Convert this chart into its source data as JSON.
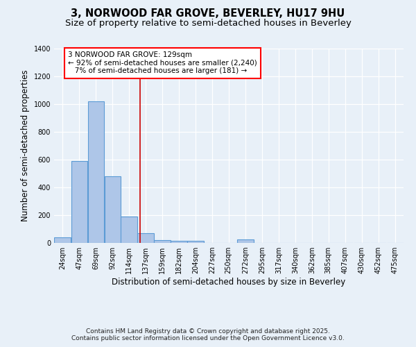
{
  "title": "3, NORWOOD FAR GROVE, BEVERLEY, HU17 9HU",
  "subtitle": "Size of property relative to semi-detached houses in Beverley",
  "xlabel": "Distribution of semi-detached houses by size in Beverley",
  "ylabel": "Number of semi-detached properties",
  "categories": [
    "24sqm",
    "47sqm",
    "69sqm",
    "92sqm",
    "114sqm",
    "137sqm",
    "159sqm",
    "182sqm",
    "204sqm",
    "227sqm",
    "250sqm",
    "272sqm",
    "295sqm",
    "317sqm",
    "340sqm",
    "362sqm",
    "385sqm",
    "407sqm",
    "430sqm",
    "452sqm",
    "475sqm"
  ],
  "bin_edges": [
    12.5,
    35.5,
    58,
    80.5,
    103,
    125.5,
    148,
    170.5,
    193,
    215.5,
    238,
    260.5,
    283.5,
    306,
    328.5,
    351,
    373.5,
    396,
    418.5,
    441,
    463.5,
    486.5
  ],
  "values": [
    40,
    590,
    1020,
    480,
    190,
    70,
    20,
    15,
    15,
    0,
    0,
    25,
    0,
    0,
    0,
    0,
    0,
    0,
    0,
    0,
    0
  ],
  "bar_color": "#aec6e8",
  "bar_edge_color": "#5b9bd5",
  "bar_edge_width": 0.8,
  "vline_x": 129,
  "vline_color": "#cc0000",
  "annotation_line1": "3 NORWOOD FAR GROVE: 129sqm",
  "annotation_line2": "← 92% of semi-detached houses are smaller (2,240)",
  "annotation_line3": "   7% of semi-detached houses are larger (181) →",
  "background_color": "#e8f0f8",
  "plot_bg_color": "#e8f0f8",
  "ylim": [
    0,
    1400
  ],
  "yticks": [
    0,
    200,
    400,
    600,
    800,
    1000,
    1200,
    1400
  ],
  "title_fontsize": 10.5,
  "subtitle_fontsize": 9.5,
  "tick_fontsize": 7,
  "ylabel_fontsize": 8.5,
  "xlabel_fontsize": 8.5,
  "annotation_fontsize": 7.5,
  "footer_fontsize": 6.5,
  "footer_line1": "Contains HM Land Registry data © Crown copyright and database right 2025.",
  "footer_line2": "Contains public sector information licensed under the Open Government Licence v3.0."
}
